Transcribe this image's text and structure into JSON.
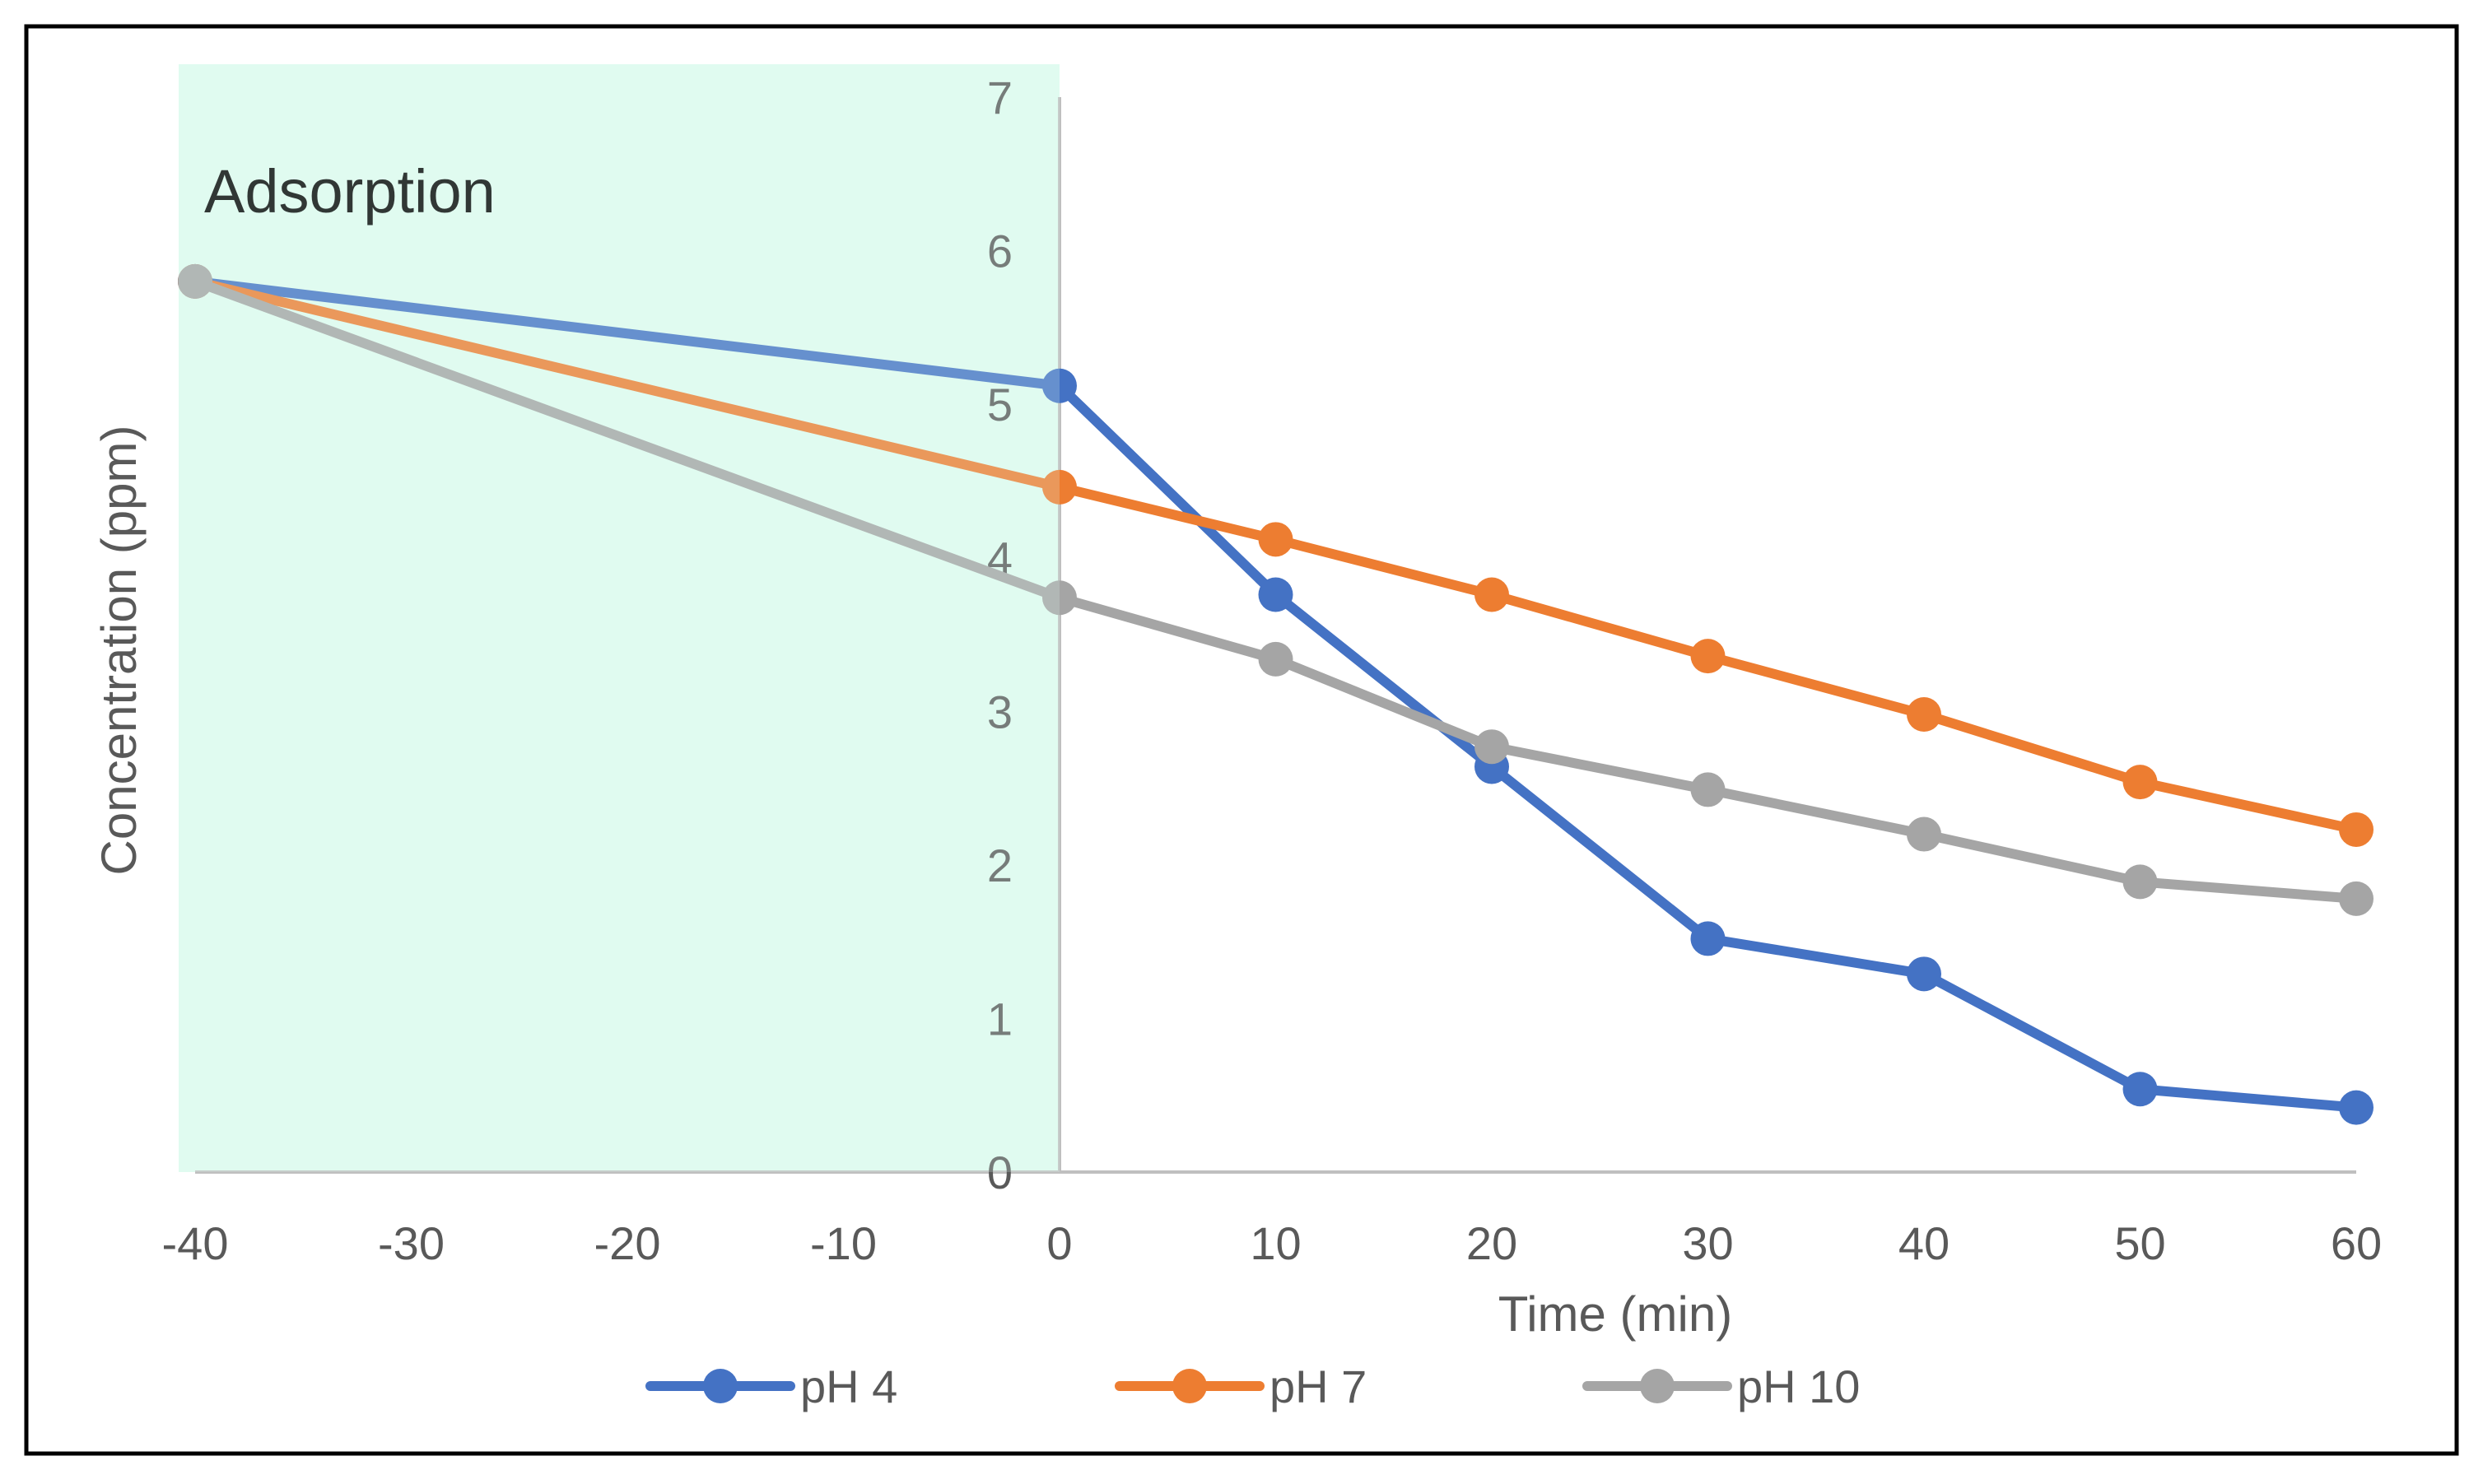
{
  "chart_data": {
    "type": "line",
    "title": "",
    "xlabel": "Time (min)",
    "ylabel": "Concentration (ppm)",
    "xlim": [
      -40,
      60
    ],
    "ylim": [
      0,
      7
    ],
    "x_ticks": [
      -40,
      -30,
      -20,
      -10,
      0,
      10,
      20,
      30,
      40,
      50,
      60
    ],
    "y_ticks": [
      0,
      1,
      2,
      3,
      4,
      5,
      6,
      7
    ],
    "x_tick_labels": [
      "-40",
      "-30",
      "-20",
      "-10",
      "0",
      "10",
      "20",
      "30",
      "40",
      "50",
      "60"
    ],
    "y_tick_labels": [
      "0",
      "1",
      "2",
      "3",
      "4",
      "5",
      "6",
      "7"
    ],
    "grid": false,
    "legend_position": "bottom",
    "shaded_region": {
      "label": "Adsorption",
      "x_range": [
        -40,
        0
      ],
      "color": "#e0fbf0"
    },
    "x": [
      -40,
      0,
      10,
      20,
      30,
      40,
      50,
      60
    ],
    "series": [
      {
        "name": "pH 4",
        "color": "#4472c4",
        "values": [
          5.8,
          5.12,
          3.76,
          2.64,
          1.52,
          1.29,
          0.54,
          0.42
        ]
      },
      {
        "name": "pH 7",
        "color": "#ed7d31",
        "values": [
          5.8,
          4.46,
          4.12,
          3.76,
          3.36,
          2.98,
          2.54,
          2.23
        ]
      },
      {
        "name": "pH 10",
        "color": "#a5a5a5",
        "values": [
          5.8,
          3.74,
          3.34,
          2.77,
          2.49,
          2.2,
          1.89,
          1.78
        ]
      }
    ]
  }
}
